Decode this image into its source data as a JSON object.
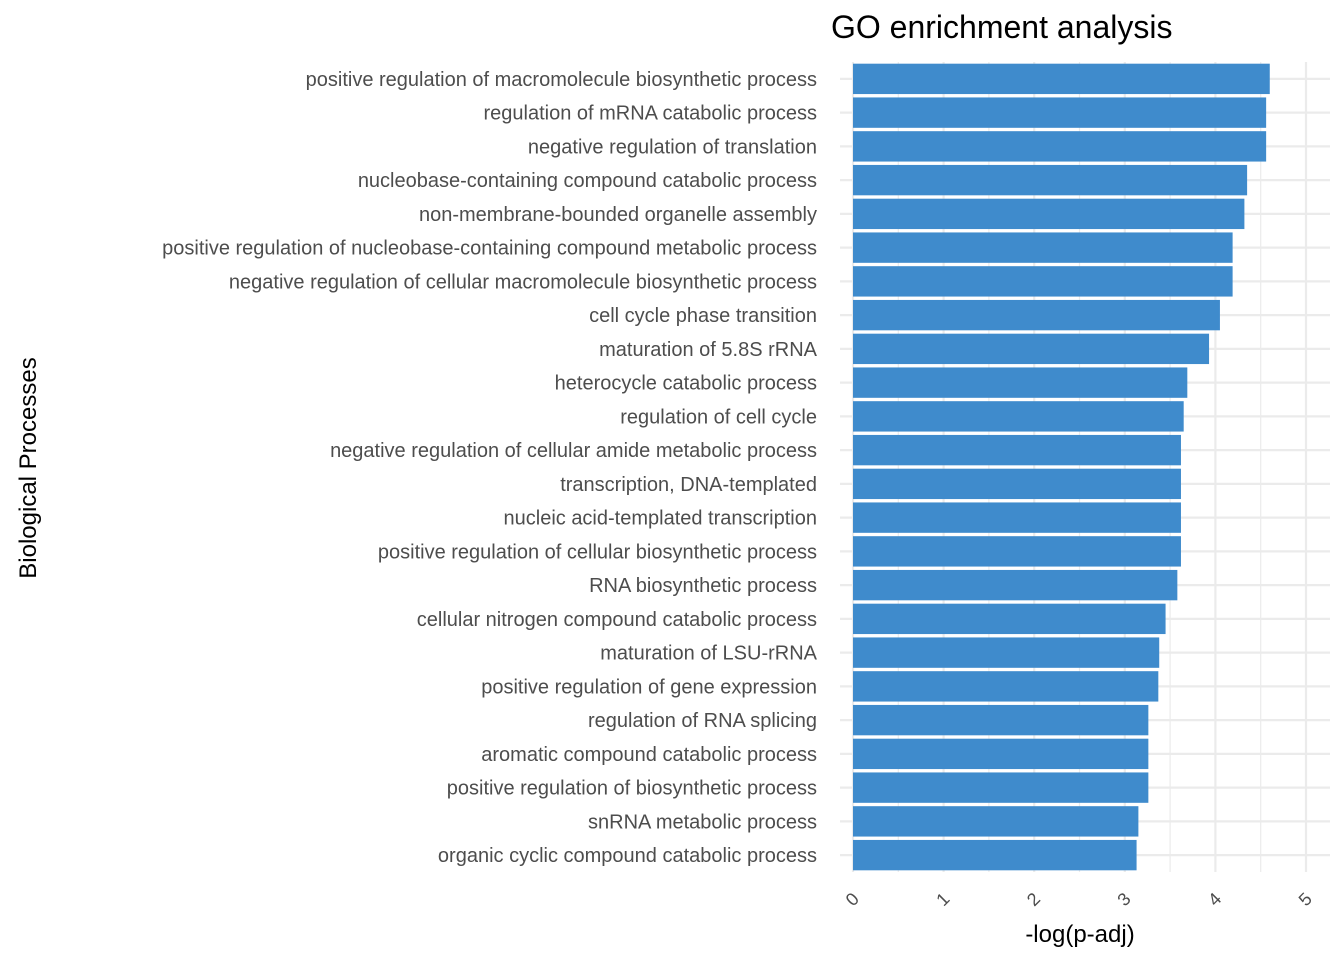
{
  "chart_data": {
    "type": "bar",
    "orientation": "horizontal",
    "title": "GO enrichment analysis",
    "xlabel": "-log(p-adj)",
    "ylabel": "Biological Processes",
    "xlim": [
      0,
      5.2
    ],
    "xticks": [
      0,
      1,
      2,
      3,
      4,
      5
    ],
    "grid": true,
    "bar_color": "#3f8bcc",
    "grid_color": "#ebebeb",
    "categories": [
      "positive regulation of macromolecule biosynthetic process",
      "regulation of mRNA catabolic process",
      "negative regulation of translation",
      "nucleobase-containing compound catabolic process",
      "non-membrane-bounded organelle assembly",
      "positive regulation of nucleobase-containing compound metabolic process",
      "negative regulation of cellular macromolecule biosynthetic process",
      "cell cycle phase transition",
      "maturation of 5.8S rRNA",
      "heterocycle catabolic process",
      "regulation of cell cycle",
      "negative regulation of cellular amide metabolic process",
      "transcription, DNA-templated",
      "nucleic acid-templated transcription",
      "positive regulation of cellular biosynthetic process",
      "RNA biosynthetic process",
      "cellular nitrogen compound catabolic process",
      "maturation of LSU-rRNA",
      "positive regulation of gene expression",
      "regulation of RNA splicing",
      "aromatic compound catabolic process",
      "positive regulation of biosynthetic process",
      "snRNA metabolic process",
      "organic cyclic compound catabolic process"
    ],
    "values": [
      4.6,
      4.56,
      4.56,
      4.35,
      4.32,
      4.19,
      4.19,
      4.05,
      3.93,
      3.69,
      3.65,
      3.62,
      3.62,
      3.62,
      3.62,
      3.58,
      3.45,
      3.38,
      3.37,
      3.26,
      3.26,
      3.26,
      3.15,
      3.13
    ]
  }
}
